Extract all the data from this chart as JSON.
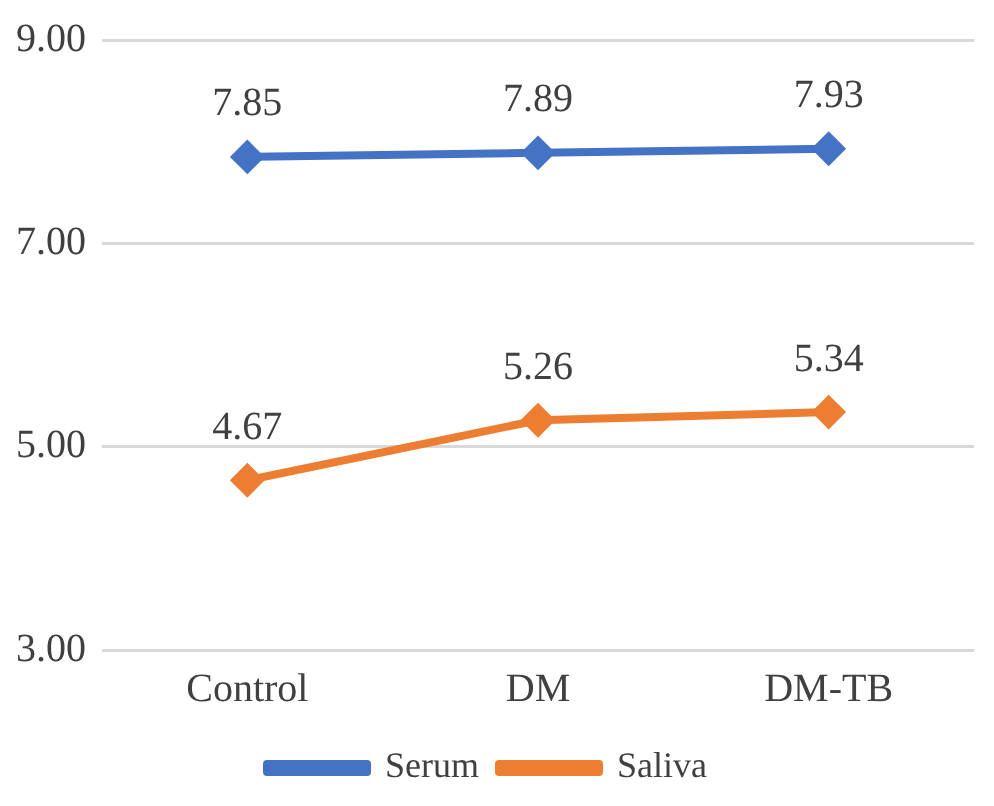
{
  "chart_data": {
    "type": "line",
    "categories": [
      "Control",
      "DM",
      "DM-TB"
    ],
    "series": [
      {
        "name": "Serum",
        "color": "#4472c4",
        "values": [
          7.85,
          7.89,
          7.93
        ]
      },
      {
        "name": "Saliva",
        "color": "#ed7d31",
        "values": [
          4.67,
          5.26,
          5.34
        ]
      }
    ],
    "ylim": [
      3,
      9
    ],
    "yticks": [
      {
        "value": 3,
        "label": "3.00"
      },
      {
        "value": 5,
        "label": "5.00"
      },
      {
        "value": 7,
        "label": "7.00"
      },
      {
        "value": 9,
        "label": "9.00"
      }
    ],
    "grid": "y",
    "legend": "bottom",
    "marker": "diamond",
    "line_style": "solid",
    "data_labels": true
  }
}
